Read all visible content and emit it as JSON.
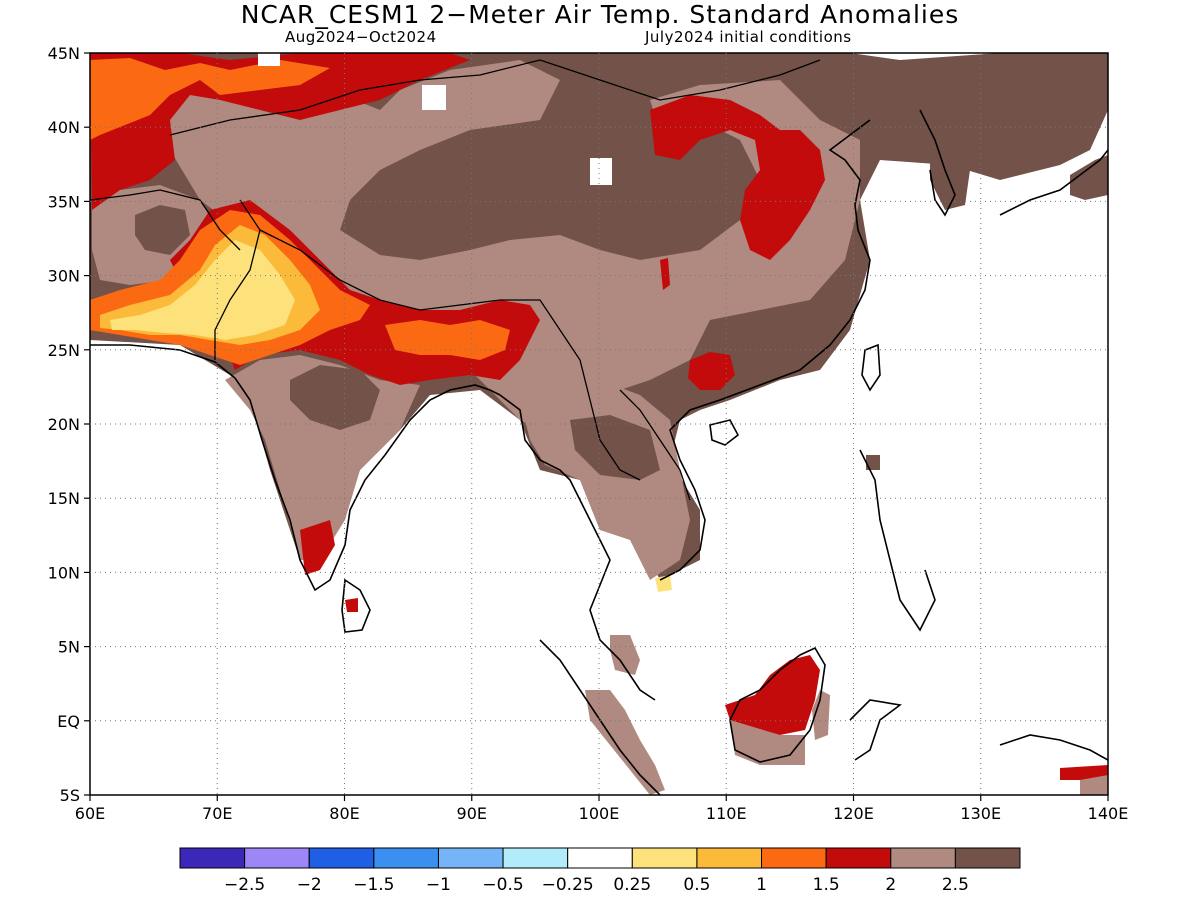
{
  "title": "NCAR_CESM1 2−Meter Air Temp. Standard Anomalies",
  "subtitle_left": "Aug2024−Oct2024",
  "subtitle_right": "July2024 initial conditions",
  "map_extent": {
    "lon": [
      60,
      140
    ],
    "lat": [
      -5,
      45
    ]
  },
  "lon_ticks": [
    "60E",
    "70E",
    "80E",
    "90E",
    "100E",
    "110E",
    "120E",
    "130E",
    "140E"
  ],
  "lat_ticks": [
    "45N",
    "40N",
    "35N",
    "30N",
    "25N",
    "20N",
    "15N",
    "10N",
    "5N",
    "EQ",
    "5S"
  ],
  "grid": "dotted",
  "colorbar": {
    "colors": [
      "#3b28b8",
      "#9d86f5",
      "#1f5fe6",
      "#3b8ff0",
      "#76b4f8",
      "#b2ecfa",
      "#ffffff",
      "#fde27c",
      "#fbba3a",
      "#fb6a12",
      "#c40b0b",
      "#b08a80",
      "#725249"
    ],
    "labels": [
      "−2.5",
      "−2",
      "−1.5",
      "−1",
      "−0.5",
      "−0.25",
      "0.25",
      "0.5",
      "1",
      "1.5",
      "2",
      "2.5"
    ]
  }
}
